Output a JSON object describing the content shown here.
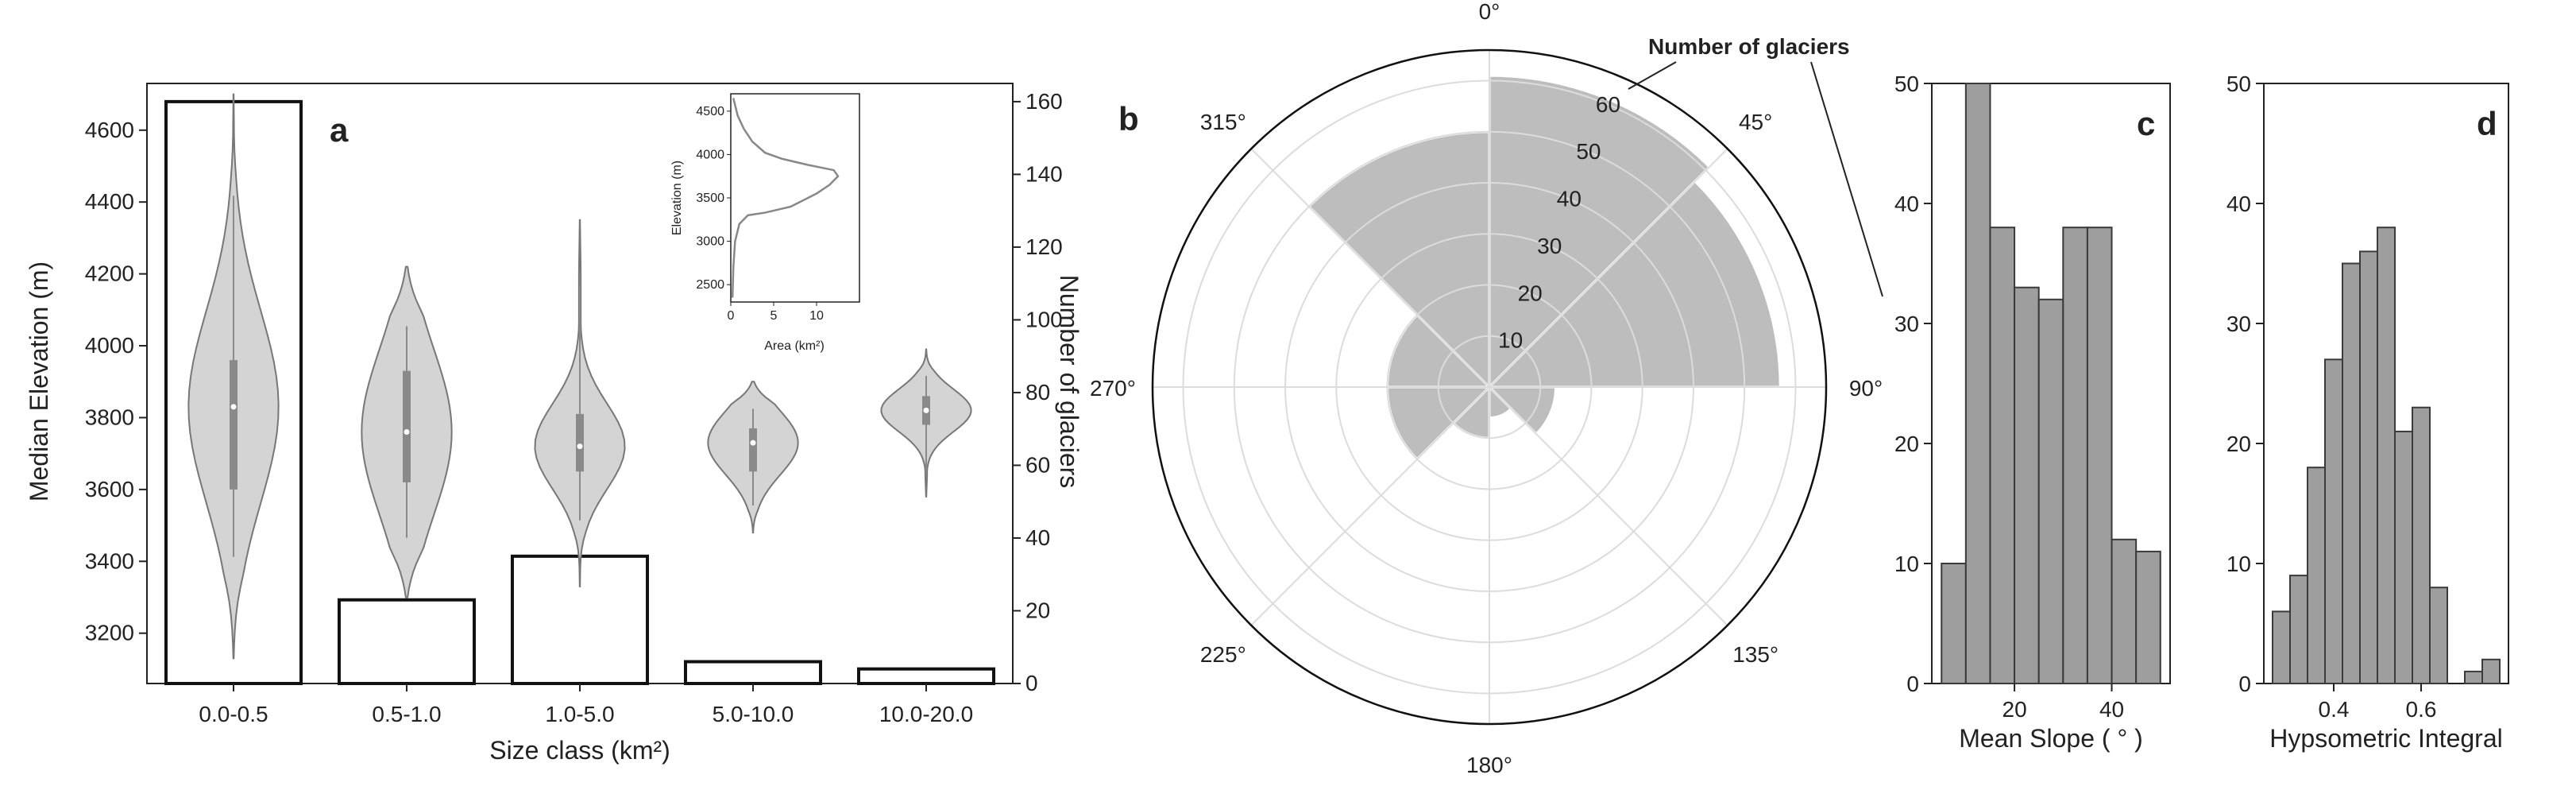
{
  "figure": {
    "panel_letters": [
      "a",
      "b",
      "c",
      "d"
    ]
  },
  "chart_data": [
    {
      "panel": "a",
      "type": "bar",
      "xlabel": "Size class (km²)",
      "ylabel_left": "Median Elevation (m)",
      "ylabel_right": "Number of glaciers",
      "categories": [
        "0.0-0.5",
        "0.5-1.0",
        "1.0-5.0",
        "5.0-10.0",
        "10.0-20.0"
      ],
      "bar_values": [
        160,
        23,
        35,
        6,
        4
      ],
      "right_ylim": [
        0,
        165
      ],
      "right_yticks": [
        0,
        20,
        40,
        60,
        80,
        100,
        120,
        140,
        160
      ],
      "left_ylim": [
        3060,
        4730
      ],
      "left_yticks": [
        3200,
        3400,
        3600,
        3800,
        4000,
        4200,
        4400,
        4600
      ],
      "violins": [
        {
          "category": "0.0-0.5",
          "min": 3130,
          "max": 4700,
          "q1": 3600,
          "median": 3830,
          "q3": 3960
        },
        {
          "category": "0.5-1.0",
          "min": 3300,
          "max": 4220,
          "q1": 3620,
          "median": 3760,
          "q3": 3930
        },
        {
          "category": "1.0-5.0",
          "min": 3330,
          "max": 4350,
          "q1": 3650,
          "median": 3720,
          "q3": 3810
        },
        {
          "category": "5.0-10.0",
          "min": 3480,
          "max": 3900,
          "q1": 3650,
          "median": 3730,
          "q3": 3770
        },
        {
          "category": "10.0-20.0",
          "min": 3580,
          "max": 3990,
          "q1": 3780,
          "median": 3820,
          "q3": 3860
        }
      ],
      "inset": {
        "type": "line",
        "xlabel": "Area (km²)",
        "ylabel": "Elevation (m)",
        "xticks": [
          0,
          5,
          10
        ],
        "yticks": [
          2500,
          3000,
          3500,
          4000,
          4500
        ],
        "ylim": [
          2300,
          4700
        ],
        "xlim": [
          0,
          15
        ],
        "points": [
          [
            0.2,
            2350
          ],
          [
            0.3,
            2700
          ],
          [
            0.5,
            3000
          ],
          [
            1.0,
            3200
          ],
          [
            2.0,
            3300
          ],
          [
            4.0,
            3330
          ],
          [
            7.0,
            3400
          ],
          [
            10.0,
            3550
          ],
          [
            11.5,
            3650
          ],
          [
            12.5,
            3750
          ],
          [
            12.0,
            3820
          ],
          [
            9.0,
            3880
          ],
          [
            6.0,
            3950
          ],
          [
            4.0,
            4020
          ],
          [
            2.5,
            4150
          ],
          [
            1.5,
            4300
          ],
          [
            0.8,
            4450
          ],
          [
            0.3,
            4650
          ]
        ]
      }
    },
    {
      "panel": "b",
      "type": "polar-bar",
      "radial_label": "Number of glaciers",
      "angle_labels": [
        "0°",
        "45°",
        "90°",
        "135°",
        "180°",
        "225°",
        "270°",
        "315°"
      ],
      "radial_ticks": [
        10,
        20,
        30,
        40,
        50,
        60
      ],
      "rmax": 66,
      "sectors": [
        {
          "start": 0,
          "end": 45,
          "value": 61
        },
        {
          "start": 45,
          "end": 90,
          "value": 57
        },
        {
          "start": 90,
          "end": 135,
          "value": 13
        },
        {
          "start": 135,
          "end": 180,
          "value": 6
        },
        {
          "start": 180,
          "end": 225,
          "value": 10
        },
        {
          "start": 225,
          "end": 270,
          "value": 20
        },
        {
          "start": 270,
          "end": 315,
          "value": 20
        },
        {
          "start": 315,
          "end": 360,
          "value": 50
        }
      ]
    },
    {
      "panel": "c",
      "type": "histogram",
      "xlabel": "Mean Slope ( ° )",
      "ylim": [
        0,
        50
      ],
      "yticks": [
        0,
        10,
        20,
        30,
        40,
        50
      ],
      "xlim": [
        3,
        52
      ],
      "xticks": [
        20,
        40
      ],
      "bins": [
        [
          5,
          10,
          10
        ],
        [
          10,
          15,
          50
        ],
        [
          15,
          20,
          38
        ],
        [
          20,
          25,
          33
        ],
        [
          25,
          30,
          32
        ],
        [
          30,
          35,
          38
        ],
        [
          35,
          40,
          38
        ],
        [
          40,
          45,
          12
        ],
        [
          45,
          50,
          11
        ]
      ]
    },
    {
      "panel": "d",
      "type": "histogram",
      "xlabel": "Hypsometric Integral",
      "ylim": [
        0,
        50
      ],
      "yticks": [
        0,
        10,
        20,
        30,
        40,
        50
      ],
      "xlim": [
        0.24,
        0.8
      ],
      "xticks": [
        0.4,
        0.6
      ],
      "bins": [
        [
          0.26,
          0.3,
          6
        ],
        [
          0.3,
          0.34,
          9
        ],
        [
          0.34,
          0.38,
          18
        ],
        [
          0.38,
          0.42,
          27
        ],
        [
          0.42,
          0.46,
          35
        ],
        [
          0.46,
          0.5,
          36
        ],
        [
          0.5,
          0.54,
          38
        ],
        [
          0.54,
          0.58,
          21
        ],
        [
          0.58,
          0.62,
          23
        ],
        [
          0.62,
          0.66,
          8
        ],
        [
          0.7,
          0.74,
          1
        ],
        [
          0.74,
          0.78,
          2
        ]
      ]
    }
  ]
}
